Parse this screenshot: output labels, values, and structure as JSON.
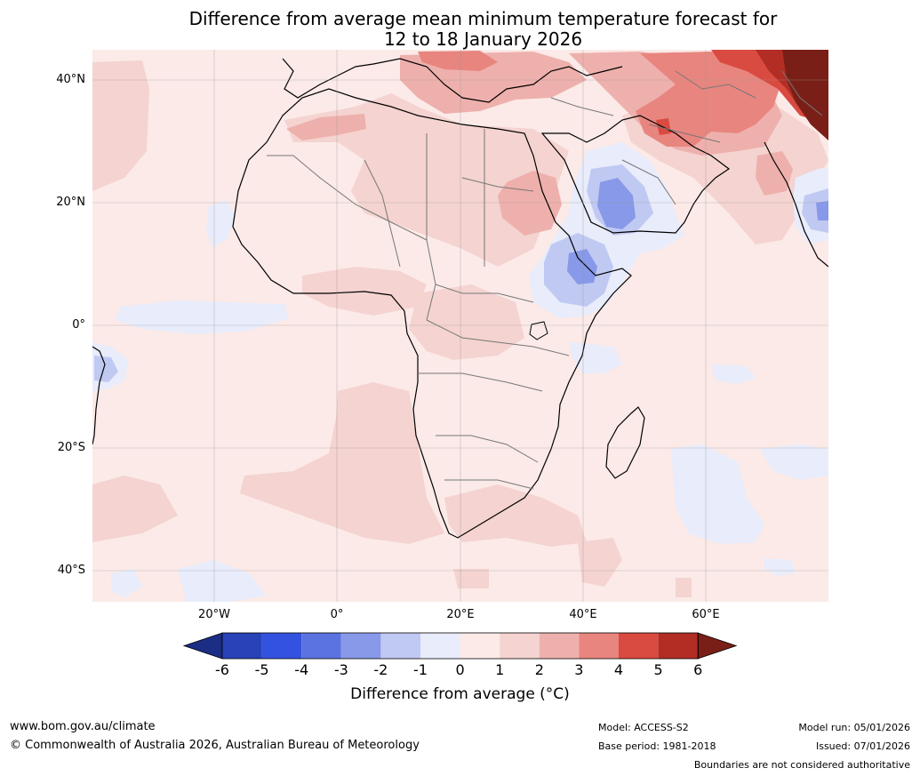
{
  "title": {
    "line1": "Difference from average mean minimum temperature forecast for",
    "line2": "12 to 18 January 2026"
  },
  "map": {
    "lat_labels": [
      "40°N",
      "20°N",
      "0°",
      "20°S",
      "40°S"
    ],
    "lon_labels": [
      "20°W",
      "0°",
      "20°E",
      "40°E",
      "60°E"
    ],
    "extent": {
      "lon_min": -40,
      "lon_max": 80,
      "lat_min": -45,
      "lat_max": 45
    }
  },
  "colorbar": {
    "ticks": [
      "-6",
      "-5",
      "-4",
      "-3",
      "-2",
      "-1",
      "0",
      "1",
      "2",
      "3",
      "4",
      "5",
      "6"
    ],
    "colors": [
      "#1c2d85",
      "#2842b8",
      "#3452e0",
      "#5b73e0",
      "#8799e8",
      "#c0c9f2",
      "#e8ecfb",
      "#fbeae8",
      "#f4d3d0",
      "#eeb0ac",
      "#e8857f",
      "#d94a40",
      "#b22e25",
      "#7a1f18"
    ],
    "label": "Difference from average (°C)"
  },
  "footer": {
    "website": "www.bom.gov.au/climate",
    "copyright": "© Commonwealth of Australia 2026, Australian Bureau of Meteorology",
    "model": "Model: ACCESS-S2",
    "base_period": "Base period: 1981-2018",
    "model_run": "Model run: 05/01/2026",
    "issued": "Issued: 07/01/2026",
    "disclaimer": "Boundaries are not considered authoritative"
  }
}
